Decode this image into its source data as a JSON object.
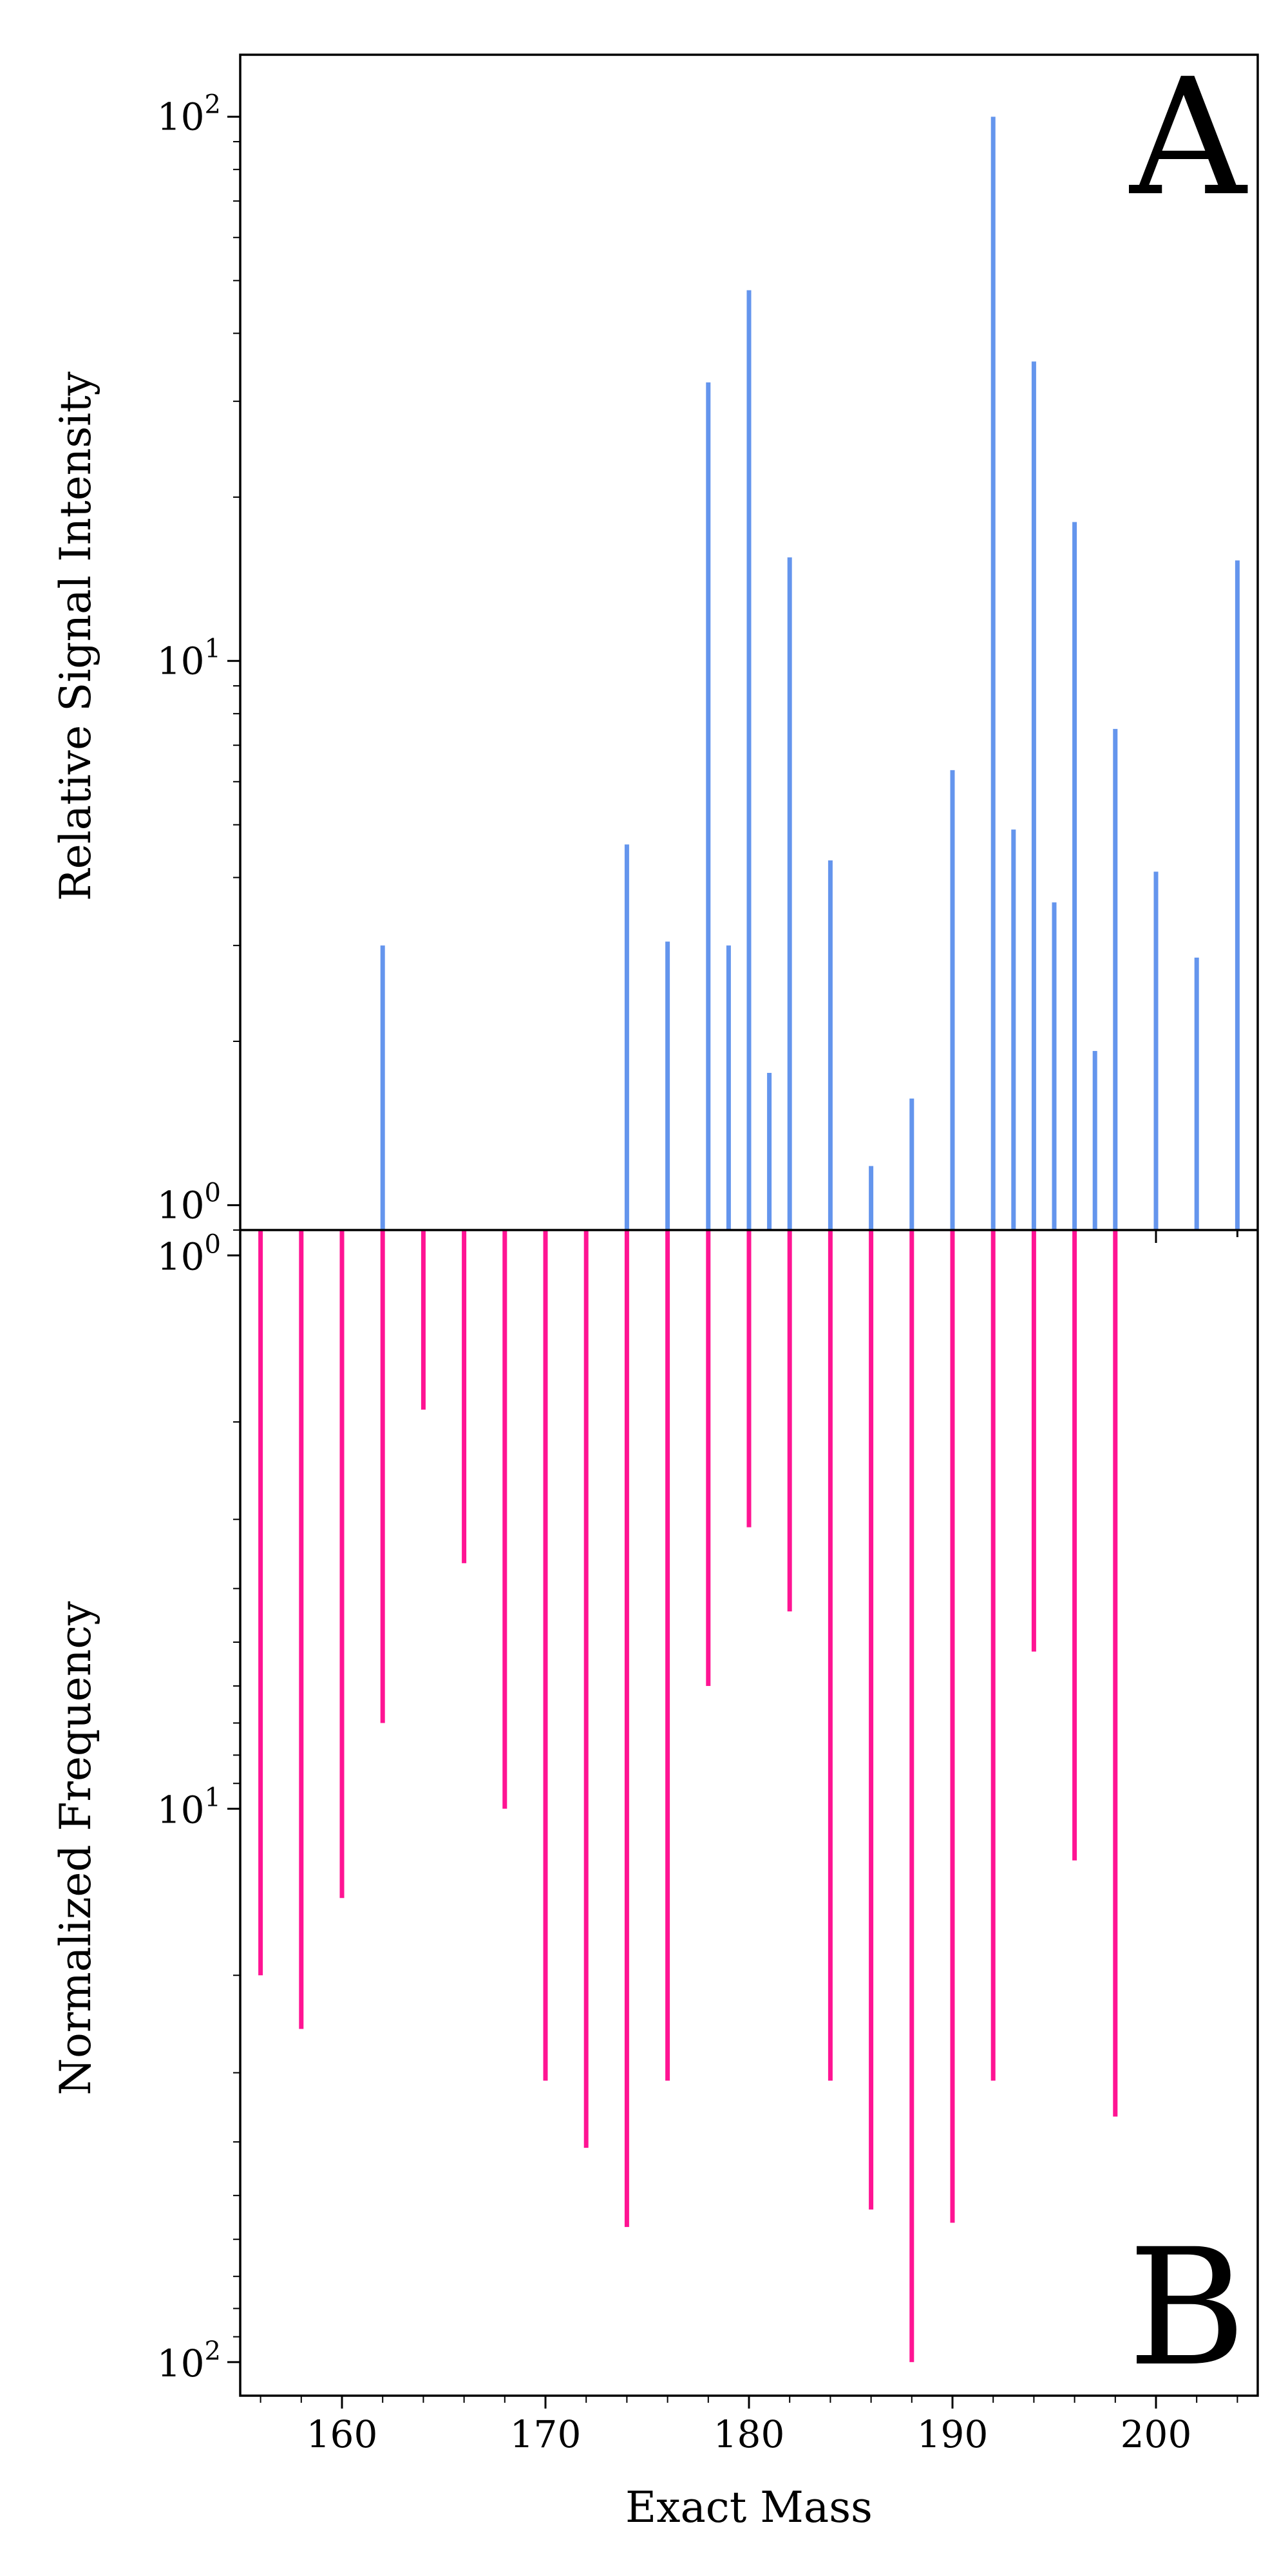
{
  "chart_data": [
    {
      "type": "bar",
      "panel_label": "A",
      "ylabel": "Relative Signal Intensity",
      "yscale": "log",
      "ylim": [
        0.9,
        130
      ],
      "y_ticks": [
        {
          "base": "10",
          "exp": "0"
        },
        {
          "base": "10",
          "exp": "1"
        },
        {
          "base": "10",
          "exp": "2"
        }
      ],
      "color": "#6495ED",
      "x": [
        162,
        174,
        176,
        178,
        179,
        180,
        181,
        182,
        184,
        186,
        188,
        190,
        192,
        193,
        194,
        195,
        196,
        197,
        198,
        200,
        202,
        204
      ],
      "values": [
        3.0,
        4.6,
        3.05,
        32.5,
        3.0,
        48.0,
        1.75,
        15.5,
        4.3,
        1.18,
        1.57,
        6.3,
        100,
        4.9,
        35.5,
        3.6,
        18.0,
        1.92,
        7.5,
        4.1,
        2.85,
        15.3
      ]
    },
    {
      "type": "bar",
      "panel_label": "B",
      "ylabel": "Normalized Frequency",
      "xlabel": "Exact Mass",
      "yscale": "log",
      "y_inverted": true,
      "ylim": [
        0.9,
        115
      ],
      "y_ticks": [
        {
          "base": "10",
          "exp": "0"
        },
        {
          "base": "10",
          "exp": "1"
        },
        {
          "base": "10",
          "exp": "2"
        }
      ],
      "color": "#FF1493",
      "x": [
        156,
        158,
        160,
        162,
        164,
        166,
        168,
        170,
        172,
        174,
        176,
        178,
        180,
        182,
        184,
        186,
        188,
        190,
        192,
        194,
        196,
        198
      ],
      "values": [
        20,
        25,
        14.5,
        7,
        1.9,
        3.6,
        10,
        31,
        41,
        57,
        31,
        6,
        3.1,
        4.4,
        31,
        53,
        100,
        56,
        31,
        5.2,
        12.4,
        36
      ],
      "xlim": [
        155,
        205
      ],
      "x_ticks": [
        "160",
        "170",
        "180",
        "190",
        "200"
      ]
    }
  ]
}
